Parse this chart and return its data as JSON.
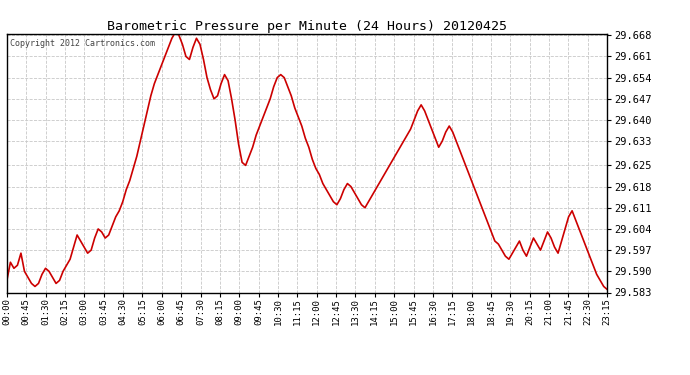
{
  "title": "Barometric Pressure per Minute (24 Hours) 20120425",
  "copyright": "Copyright 2012 Cartronics.com",
  "line_color": "#cc0000",
  "bg_color": "#ffffff",
  "plot_bg_color": "#ffffff",
  "grid_color": "#c8c8c8",
  "ylim": [
    29.583,
    29.6685
  ],
  "yticks": [
    29.583,
    29.59,
    29.597,
    29.604,
    29.611,
    29.618,
    29.625,
    29.633,
    29.64,
    29.647,
    29.654,
    29.661,
    29.668
  ],
  "xtick_labels": [
    "00:00",
    "00:45",
    "01:30",
    "02:15",
    "03:00",
    "03:45",
    "04:30",
    "05:15",
    "06:00",
    "06:45",
    "07:30",
    "08:15",
    "09:00",
    "09:45",
    "10:30",
    "11:15",
    "12:00",
    "12:45",
    "13:30",
    "14:15",
    "15:00",
    "15:45",
    "16:30",
    "17:15",
    "18:00",
    "18:45",
    "19:30",
    "20:15",
    "21:00",
    "21:45",
    "22:30",
    "23:15"
  ],
  "pressure_values": [
    29.587,
    29.593,
    29.591,
    29.592,
    29.596,
    29.59,
    29.588,
    29.586,
    29.585,
    29.586,
    29.589,
    29.591,
    29.59,
    29.588,
    29.586,
    29.587,
    29.59,
    29.592,
    29.594,
    29.598,
    29.602,
    29.6,
    29.598,
    29.596,
    29.597,
    29.601,
    29.604,
    29.603,
    29.601,
    29.602,
    29.605,
    29.608,
    29.61,
    29.613,
    29.617,
    29.62,
    29.624,
    29.628,
    29.633,
    29.638,
    29.643,
    29.648,
    29.652,
    29.655,
    29.658,
    29.661,
    29.664,
    29.667,
    29.669,
    29.668,
    29.665,
    29.661,
    29.66,
    29.664,
    29.667,
    29.665,
    29.66,
    29.654,
    29.65,
    29.647,
    29.648,
    29.652,
    29.655,
    29.653,
    29.647,
    29.64,
    29.632,
    29.626,
    29.625,
    29.628,
    29.631,
    29.635,
    29.638,
    29.641,
    29.644,
    29.647,
    29.651,
    29.654,
    29.655,
    29.654,
    29.651,
    29.648,
    29.644,
    29.641,
    29.638,
    29.634,
    29.631,
    29.627,
    29.624,
    29.622,
    29.619,
    29.617,
    29.615,
    29.613,
    29.612,
    29.614,
    29.617,
    29.619,
    29.618,
    29.616,
    29.614,
    29.612,
    29.611,
    29.613,
    29.615,
    29.617,
    29.619,
    29.621,
    29.623,
    29.625,
    29.627,
    29.629,
    29.631,
    29.633,
    29.635,
    29.637,
    29.64,
    29.643,
    29.645,
    29.643,
    29.64,
    29.637,
    29.634,
    29.631,
    29.633,
    29.636,
    29.638,
    29.636,
    29.633,
    29.63,
    29.627,
    29.624,
    29.621,
    29.618,
    29.615,
    29.612,
    29.609,
    29.606,
    29.603,
    29.6,
    29.599,
    29.597,
    29.595,
    29.594,
    29.596,
    29.598,
    29.6,
    29.597,
    29.595,
    29.598,
    29.601,
    29.599,
    29.597,
    29.6,
    29.603,
    29.601,
    29.598,
    29.596,
    29.6,
    29.604,
    29.608,
    29.61,
    29.607,
    29.604,
    29.601,
    29.598,
    29.595,
    29.592,
    29.589,
    29.587,
    29.585,
    29.584
  ]
}
